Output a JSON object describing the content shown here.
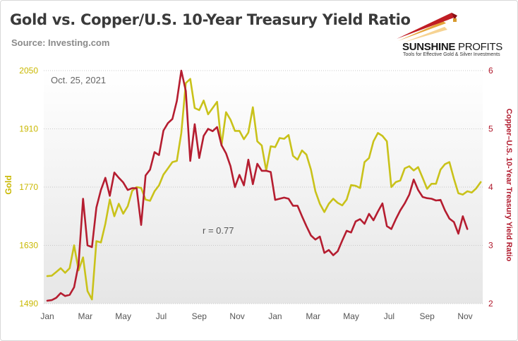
{
  "header": {
    "title": "Gold vs. Copper/U.S. 10-Year Treasury Yield Ratio",
    "source": "Source: Investing.com"
  },
  "logo": {
    "name_bold": "SUNSHINE",
    "name_thin": " PROFITS",
    "tagline": "Tools for Effective Gold & Silver Investments"
  },
  "colors": {
    "gold": "#c9c21a",
    "ratio": "#b51d30",
    "plot_bg_top": "#ffffff",
    "plot_bg_bottom": "#e6e6e6"
  },
  "chart_data": {
    "type": "line",
    "annotation_date": "Oct. 25, 2021",
    "correlation_label": "r = 0.77",
    "x_tick_labels": [
      "Jan",
      "Mar",
      "May",
      "Jul",
      "Sep",
      "Nov",
      "Jan",
      "Mar",
      "May",
      "Jul",
      "Sep",
      "Nov"
    ],
    "x_tick_weeks": [
      0,
      8.5,
      17,
      25.5,
      34,
      42.5,
      51,
      59.5,
      68,
      76.5,
      85,
      93.5
    ],
    "week_range": [
      0,
      93.5
    ],
    "y_left": {
      "label": "Gold",
      "ticks": [
        1490,
        1630,
        1770,
        1910,
        2050
      ],
      "range": [
        1490,
        2050
      ]
    },
    "y_right": {
      "label": "Copper–U.S. 10-Year Treasury Yield Ratio",
      "ticks": [
        2,
        3,
        4,
        5,
        6
      ],
      "range": [
        2,
        6
      ]
    },
    "series": [
      {
        "name": "Gold",
        "axis": "left",
        "values": [
          1556,
          1557,
          1566,
          1575,
          1564,
          1575,
          1630,
          1570,
          1601,
          1520,
          1500,
          1640,
          1637,
          1682,
          1740,
          1700,
          1730,
          1706,
          1724,
          1761,
          1770,
          1768,
          1740,
          1737,
          1760,
          1774,
          1800,
          1815,
          1830,
          1833,
          1900,
          2020,
          2030,
          1960,
          1955,
          1978,
          1945,
          1960,
          1975,
          1870,
          1950,
          1932,
          1905,
          1905,
          1885,
          1901,
          1962,
          1880,
          1870,
          1810,
          1868,
          1866,
          1888,
          1886,
          1895,
          1845,
          1836,
          1858,
          1848,
          1812,
          1760,
          1730,
          1710,
          1730,
          1742,
          1732,
          1726,
          1740,
          1775,
          1773,
          1768,
          1830,
          1840,
          1880,
          1900,
          1893,
          1880,
          1770,
          1782,
          1786,
          1815,
          1820,
          1810,
          1818,
          1792,
          1766,
          1778,
          1778,
          1812,
          1825,
          1830,
          1790,
          1755,
          1752,
          1760,
          1757,
          1767,
          1782
        ]
      },
      {
        "name": "Copper–U.S. 10-Year Treasury Yield Ratio",
        "axis": "right",
        "values": [
          2.05,
          2.06,
          2.1,
          2.18,
          2.13,
          2.15,
          2.28,
          2.67,
          3.8,
          3.0,
          2.97,
          3.65,
          3.95,
          4.16,
          3.85,
          4.25,
          4.16,
          4.08,
          3.95,
          3.98,
          3.98,
          3.35,
          4.2,
          4.3,
          4.6,
          4.55,
          4.97,
          5.1,
          5.17,
          5.48,
          6.0,
          5.65,
          4.45,
          5.08,
          4.5,
          4.88,
          5.0,
          4.96,
          5.03,
          4.72,
          4.58,
          4.36,
          4.0,
          4.21,
          4.03,
          4.47,
          4.05,
          4.4,
          4.28,
          4.28,
          4.26,
          3.78,
          3.8,
          3.82,
          3.8,
          3.68,
          3.68,
          3.5,
          3.33,
          3.17,
          3.1,
          3.15,
          2.87,
          2.92,
          2.83,
          2.9,
          3.08,
          3.25,
          3.22,
          3.41,
          3.45,
          3.37,
          3.54,
          3.43,
          3.58,
          3.72,
          3.33,
          3.28,
          3.45,
          3.6,
          3.72,
          3.87,
          4.13,
          3.95,
          3.83,
          3.81,
          3.8,
          3.77,
          3.78,
          3.6,
          3.46,
          3.4,
          3.2,
          3.5,
          3.28
        ]
      }
    ],
    "grid": true,
    "legend": "none"
  }
}
